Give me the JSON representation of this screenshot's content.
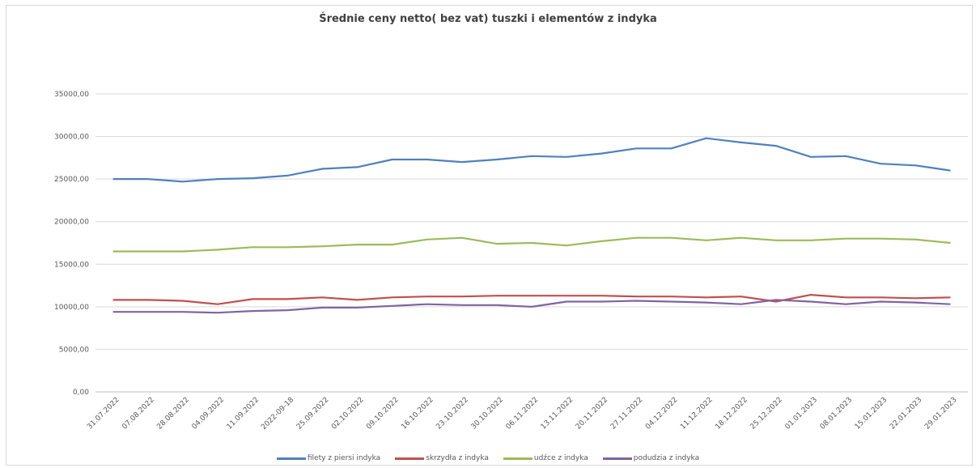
{
  "chart_data": {
    "type": "line",
    "title": "Średnie ceny netto( bez vat) tuszki i elementów z indyka",
    "xlabel": "",
    "ylabel": "",
    "ylim": [
      0,
      35000
    ],
    "yticks": [
      "0,00",
      "5000,00",
      "10000,00",
      "15000,00",
      "20000,00",
      "25000,00",
      "30000,00",
      "35000,00"
    ],
    "ytick_values": [
      0,
      5000,
      10000,
      15000,
      20000,
      25000,
      30000,
      35000
    ],
    "grid": "horizontal",
    "legend_position": "bottom",
    "categories": [
      "31.07.2022",
      "07.08.2022",
      "28.08.2022",
      "04.09.2022",
      "11.09.2022",
      "2022-09-18",
      "25.09.2022",
      "02.10.2022",
      "09.10.2022",
      "16.10.2022",
      "23.10.2022",
      "30.10.2022",
      "06.11.2022",
      "13.11.2022",
      "20.11.2022",
      "27.11.2022",
      "04.12.2022",
      "11.12.2022",
      "18.12.2022",
      "25.12.2022",
      "01.01.2023",
      "08.01.2023",
      "15.01.2023",
      "22.01.2023",
      "29.01.2023"
    ],
    "series": [
      {
        "name": "filety z piersi indyka",
        "color": "#4f81bd",
        "values": [
          25000,
          25000,
          24700,
          25000,
          25100,
          25400,
          26200,
          26400,
          27300,
          27300,
          27000,
          27300,
          27700,
          27600,
          28000,
          28600,
          28600,
          29800,
          29300,
          28900,
          27600,
          27700,
          26800,
          26600,
          26000
        ]
      },
      {
        "name": "skrzydła z indyka",
        "color": "#c0504d",
        "values": [
          10800,
          10800,
          10700,
          10300,
          10900,
          10900,
          11100,
          10800,
          11100,
          11200,
          11200,
          11300,
          11300,
          11300,
          11300,
          11200,
          11200,
          11100,
          11200,
          10600,
          11400,
          11100,
          11100,
          11000,
          11100
        ]
      },
      {
        "name": "udźce z indyka",
        "color": "#9bbb59",
        "values": [
          16500,
          16500,
          16500,
          16700,
          17000,
          17000,
          17100,
          17300,
          17300,
          17900,
          18100,
          17400,
          17500,
          17200,
          17700,
          18100,
          18100,
          17800,
          18100,
          17800,
          17800,
          18000,
          18000,
          17900,
          17500
        ]
      },
      {
        "name": "podudzia z indyka",
        "color": "#8064a2",
        "values": [
          9400,
          9400,
          9400,
          9300,
          9500,
          9600,
          9900,
          9900,
          10100,
          10300,
          10200,
          10200,
          10000,
          10600,
          10600,
          10700,
          10600,
          10500,
          10300,
          10800,
          10600,
          10300,
          10600,
          10500,
          10300
        ]
      }
    ]
  }
}
